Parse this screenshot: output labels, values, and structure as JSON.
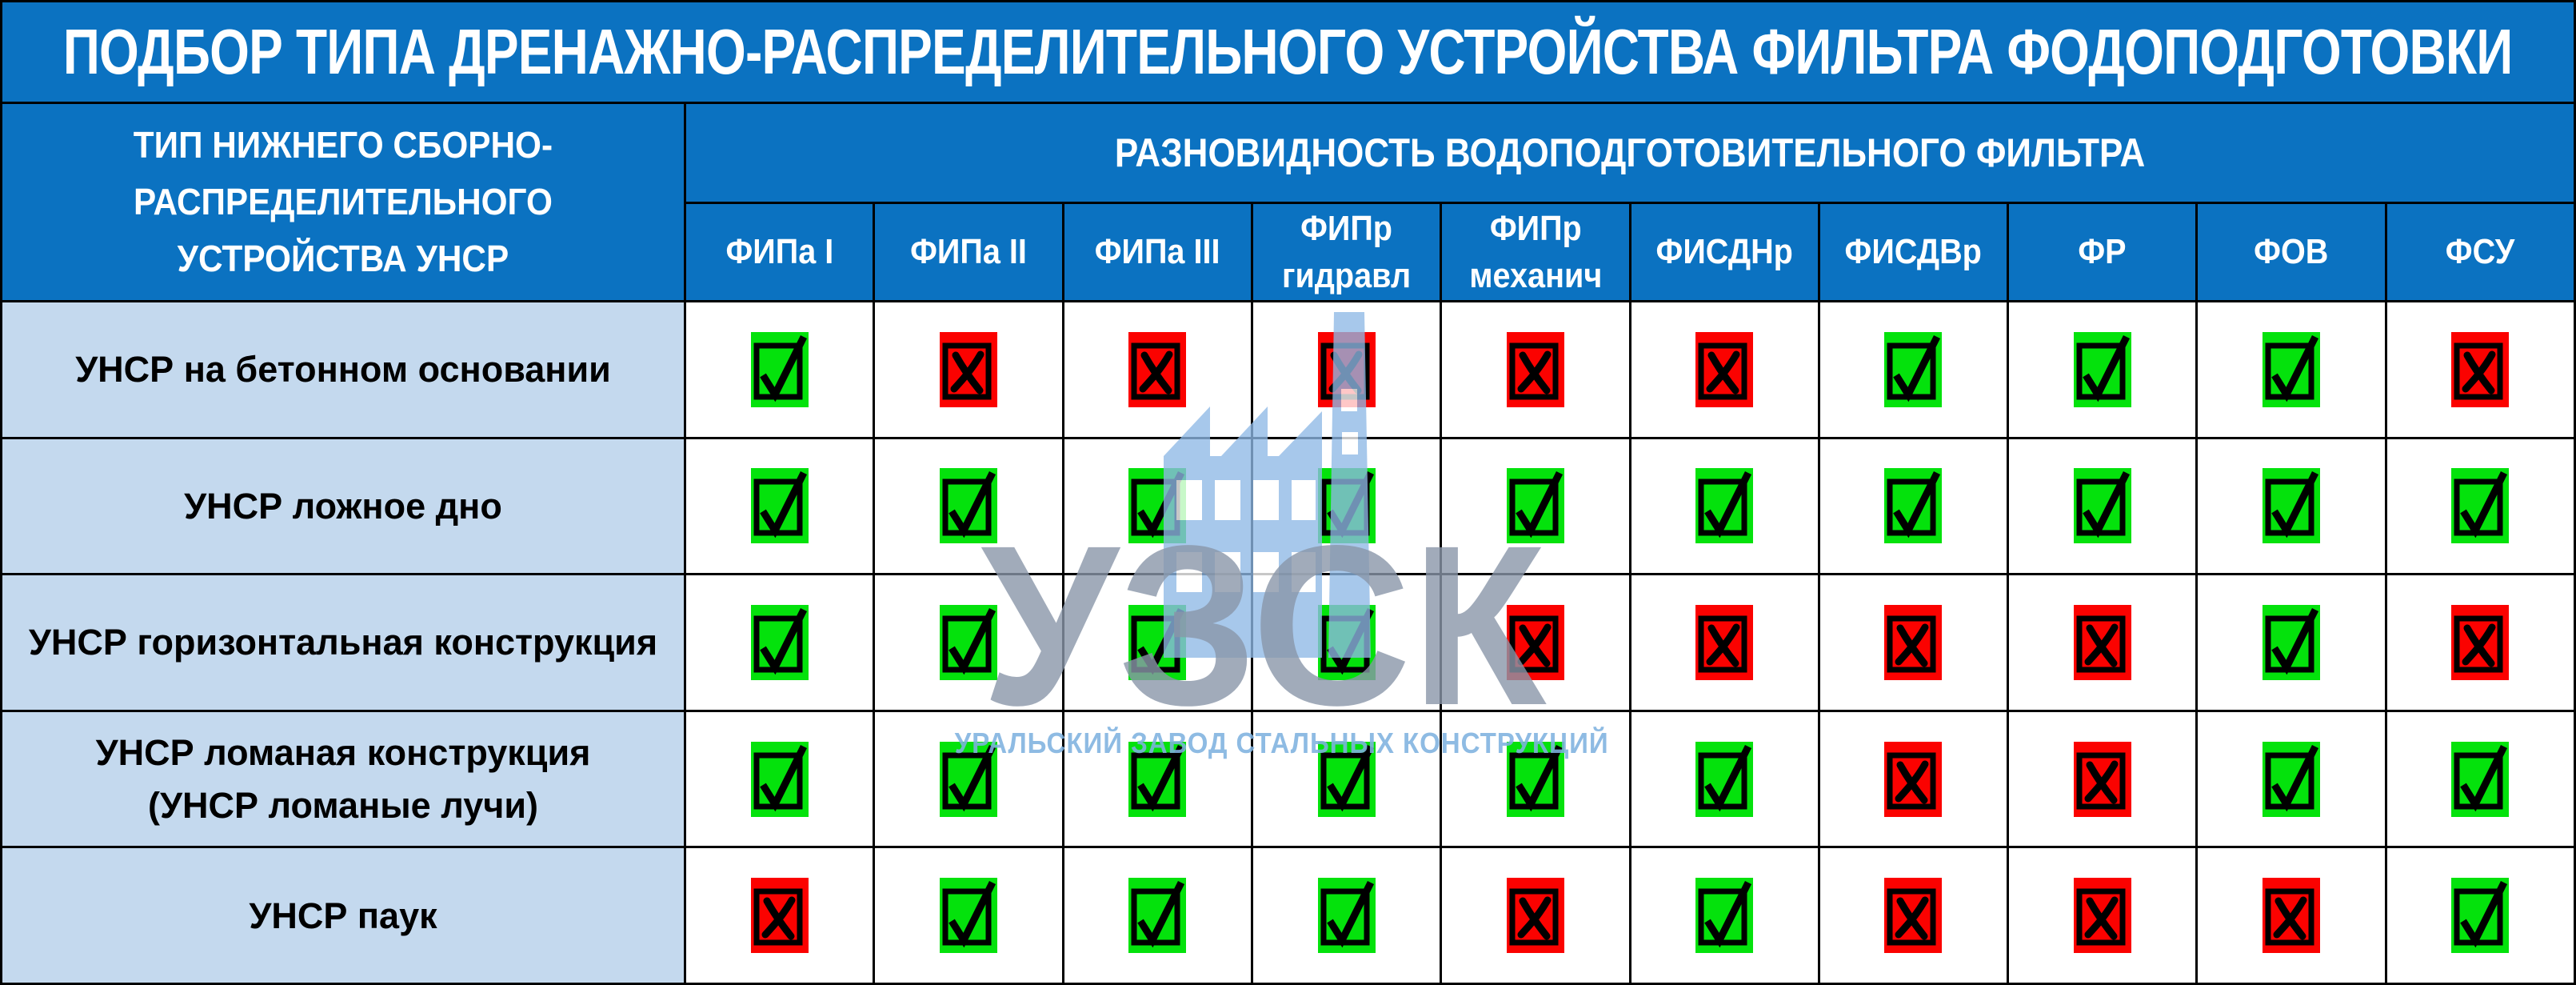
{
  "title": "ПОДБОР ТИПА ДРЕНАЖНО-РАСПРЕДЕЛИТЕЛЬНОГО УСТРОЙСТВА ФИЛЬТРА ФОДОПОДГОТОВКИ",
  "left_header": "ТИП НИЖНЕГО СБОРНО-\nРАСПРЕДЕЛИТЕЛЬНОГО\nУСТРОЙСТВА УНСР",
  "group_header": "РАЗНОВИДНОСТЬ ВОДОПОДГОТОВИТЕЛЬНОГО ФИЛЬТРА",
  "columns": [
    "ФИПа I",
    "ФИПа II",
    "ФИПа III",
    "ФИПр\nгидравл",
    "ФИПр\nмеханич",
    "ФИСДНр",
    "ФИСДВр",
    "ФР",
    "ФОВ",
    "ФСУ"
  ],
  "rows": [
    {
      "label": "УНСР на бетонном основании",
      "marks": [
        "check",
        "cross",
        "cross",
        "cross",
        "cross",
        "cross",
        "check",
        "check",
        "check",
        "cross"
      ]
    },
    {
      "label": "УНСР ложное дно",
      "marks": [
        "check",
        "check",
        "check",
        "check",
        "check",
        "check",
        "check",
        "check",
        "check",
        "check"
      ]
    },
    {
      "label": "УНСР горизонтальная конструкция",
      "marks": [
        "check",
        "check",
        "check",
        "check",
        "cross",
        "cross",
        "cross",
        "cross",
        "check",
        "cross"
      ]
    },
    {
      "label": "УНСР ломаная конструкция\n(УНСР ломаные лучи)",
      "marks": [
        "check",
        "check",
        "check",
        "check",
        "check",
        "check",
        "cross",
        "cross",
        "check",
        "check"
      ]
    },
    {
      "label": "УНСР паук",
      "marks": [
        "cross",
        "check",
        "check",
        "check",
        "cross",
        "check",
        "cross",
        "cross",
        "cross",
        "check"
      ]
    }
  ],
  "watermark": {
    "abbr": "УЗСК",
    "tagline": "УРАЛЬСКИЙ ЗАВОД СТАЛЬНЫХ КОНСТРУКЦИЙ"
  },
  "colors": {
    "header_blue": "#0b72c1",
    "row_label_blue": "#c4d9ee",
    "check_green": "#04e20c",
    "cross_red": "#fb0200",
    "border_black": "#000000",
    "watermark_gray": "#8a97a9",
    "watermark_blue": "#7fb2e0",
    "watermark_icon_blue": "#8fb9e6"
  }
}
